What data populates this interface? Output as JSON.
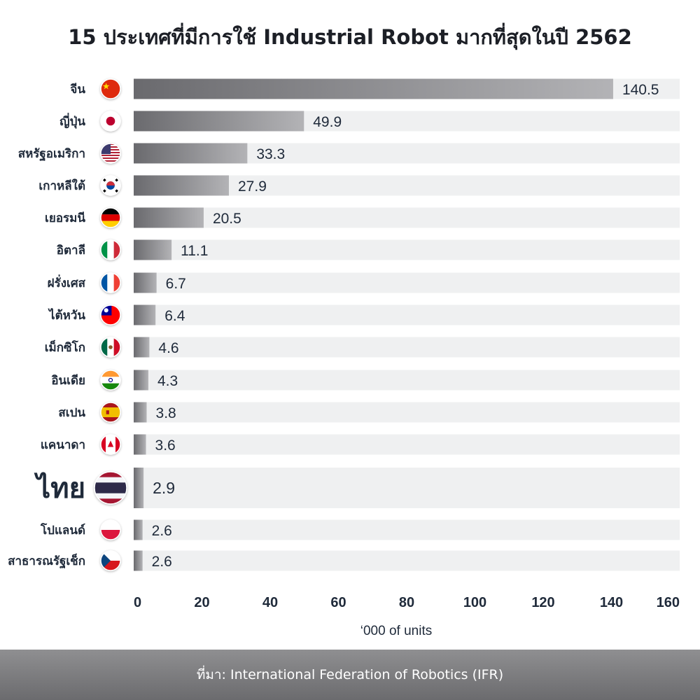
{
  "title": "15 ประเทศที่มีการใช้ Industrial Robot มากที่สุดในปี 2562",
  "source": "ที่มา: International Federation of Robotics (IFR)",
  "colors": {
    "track": "#eff0f1",
    "bar_dark": "#6a6a6e",
    "bar_light": "#b3b3b6",
    "text": "#1f2a3a"
  },
  "chart_data": {
    "type": "bar",
    "orientation": "horizontal",
    "title": "15 ประเทศที่มีการใช้ Industrial Robot มากที่สุดในปี 2562",
    "xlabel": "‘000 of units",
    "ylabel": "",
    "xlim": [
      0,
      160
    ],
    "xticks": [
      "0",
      "20",
      "40",
      "60",
      "80",
      "100",
      "120",
      "140",
      "160"
    ],
    "grid": false,
    "highlight": "ไทย",
    "categories": [
      "จีน",
      "ญี่ปุ่น",
      "สหรัฐอเมริกา",
      "เกาหลีใต้",
      "เยอรมนี",
      "อิตาลี",
      "ฝรั่งเศส",
      "ไต้หวัน",
      "เม็กซิโก",
      "อินเดีย",
      "สเปน",
      "แคนาดา",
      "ไทย",
      "โปแลนด์",
      "สาธารณรัฐเช็ก"
    ],
    "values": [
      140.5,
      49.9,
      33.3,
      27.9,
      20.5,
      11.1,
      6.7,
      6.4,
      4.6,
      4.3,
      3.8,
      3.6,
      2.9,
      2.6,
      2.6
    ],
    "value_labels": [
      "140.5",
      "49.9",
      "33.3",
      "27.9",
      "20.5",
      "11.1",
      "6.7",
      "6.4",
      "4.6",
      "4.3",
      "3.8",
      "3.6",
      "2.9",
      "2.6",
      "2.6"
    ],
    "flags": [
      "china-flag-icon",
      "japan-flag-icon",
      "usa-flag-icon",
      "south-korea-flag-icon",
      "germany-flag-icon",
      "italy-flag-icon",
      "france-flag-icon",
      "taiwan-flag-icon",
      "mexico-flag-icon",
      "india-flag-icon",
      "spain-flag-icon",
      "canada-flag-icon",
      "thailand-flag-icon",
      "poland-flag-icon",
      "czech-flag-icon"
    ]
  }
}
